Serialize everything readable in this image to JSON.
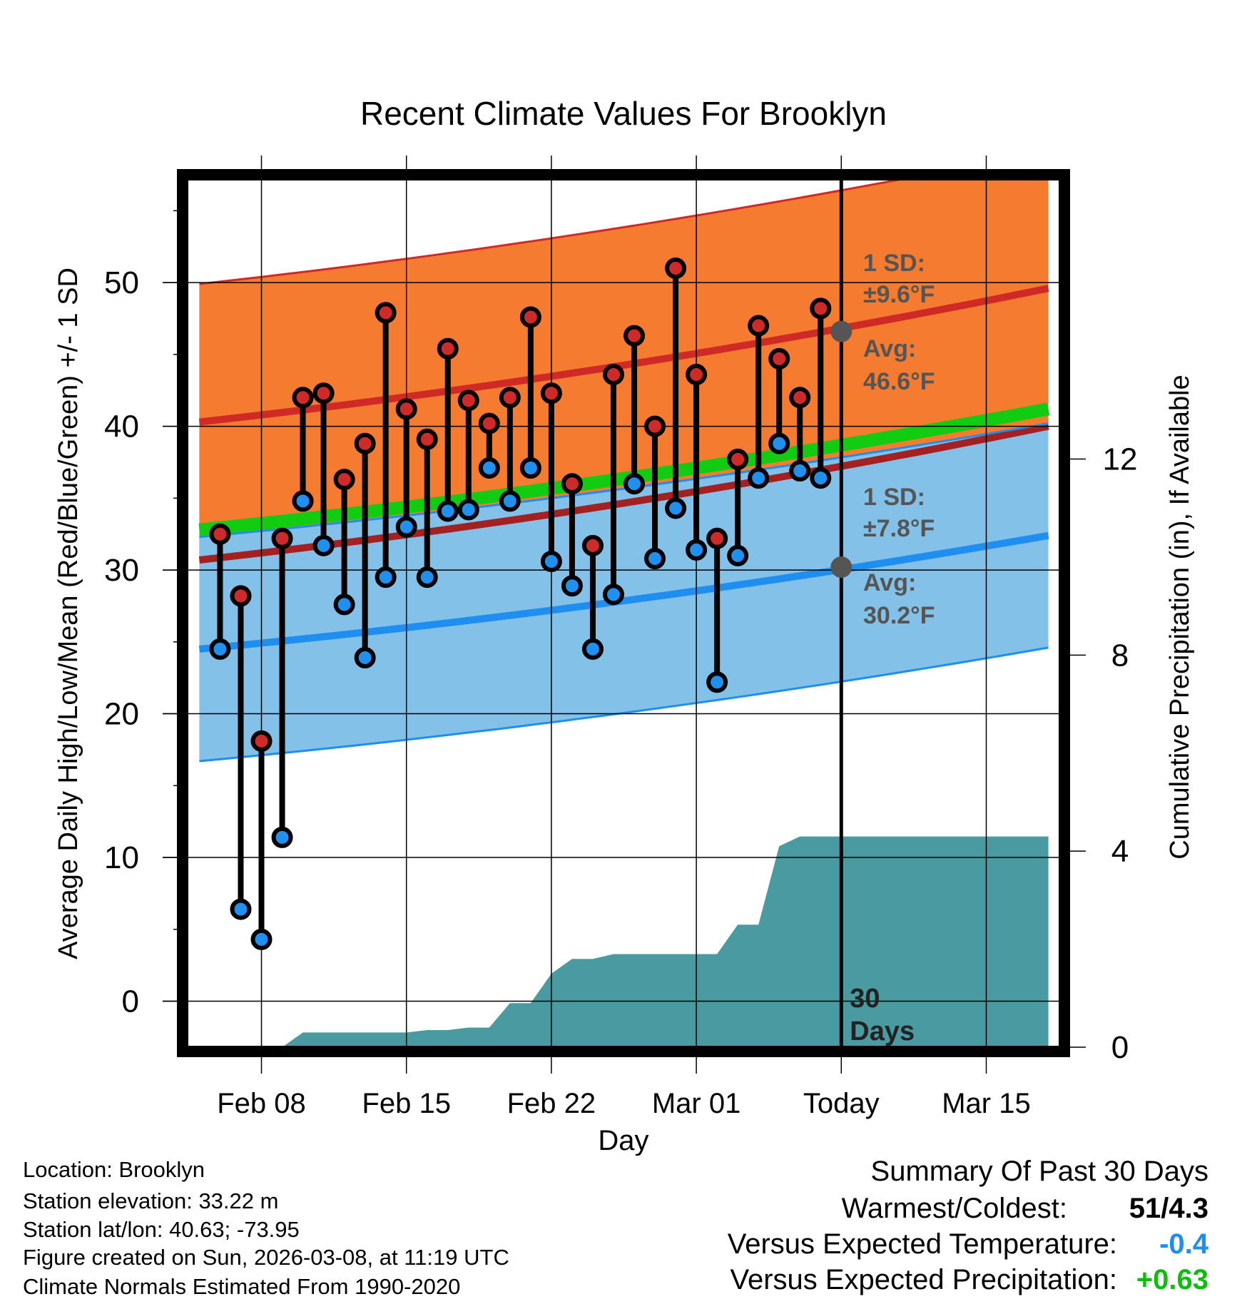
{
  "chart_data": {
    "type": "line",
    "title": "Recent Climate Values For Brooklyn",
    "xlabel": "Day",
    "ylabel": "Average Daily High/Low/Mean (Red/Blue/Green) +/- 1 SD",
    "ylabel_right": "Cumulative Precipitation (in), If Available",
    "xlim": [
      -3.6,
      38.6
    ],
    "ylim": [
      -3.2,
      57.5
    ],
    "ylim_right": [
      0,
      17.8
    ],
    "x_ticks": [
      {
        "x": 0,
        "label": "Feb 08"
      },
      {
        "x": 7,
        "label": "Feb 15"
      },
      {
        "x": 14,
        "label": "Feb 22"
      },
      {
        "x": 21,
        "label": "Mar 01"
      },
      {
        "x": 28,
        "label": "Today"
      },
      {
        "x": 35,
        "label": "Mar 15"
      }
    ],
    "y_ticks": [
      0,
      10,
      20,
      30,
      40,
      50
    ],
    "y_ticks_right": [
      0,
      4,
      8,
      12
    ],
    "today_x": 28,
    "today_label": [
      "30",
      "Days"
    ],
    "daily_x": [
      -2,
      -1,
      0,
      1,
      2,
      3,
      4,
      5,
      6,
      7,
      8,
      9,
      10,
      11,
      12,
      13,
      14,
      15,
      16,
      17,
      18,
      19,
      20,
      21,
      22,
      23,
      24,
      25,
      26,
      27
    ],
    "daily_high": [
      32.5,
      28.2,
      18.1,
      32.2,
      42.0,
      42.3,
      36.3,
      38.8,
      47.9,
      41.2,
      39.1,
      45.4,
      41.8,
      40.2,
      42.0,
      47.6,
      42.3,
      36.0,
      31.7,
      43.6,
      46.3,
      40.0,
      51.0,
      43.6,
      32.2,
      37.7,
      47.0,
      44.7,
      42.0,
      48.2
    ],
    "daily_low": [
      24.5,
      6.4,
      4.3,
      11.4,
      34.8,
      31.7,
      27.6,
      23.9,
      29.5,
      33.0,
      29.5,
      34.1,
      34.2,
      37.1,
      34.8,
      37.1,
      30.6,
      28.9,
      24.5,
      28.3,
      36.0,
      30.8,
      34.3,
      31.4,
      22.2,
      31.0,
      36.4,
      38.8,
      36.9,
      36.4
    ],
    "normal_x": [
      -3,
      38
    ],
    "normal_high": [
      40.3,
      49.6
    ],
    "normal_low": [
      24.5,
      32.4
    ],
    "normal_mean": [
      32.8,
      41.2
    ],
    "sd_high": 9.6,
    "sd_low": 7.8,
    "precip_x": [
      -3,
      -2,
      -1,
      0,
      1,
      2,
      3,
      4,
      5,
      6,
      7,
      8,
      9,
      10,
      11,
      12,
      13,
      14,
      15,
      16,
      17,
      18,
      19,
      20,
      21,
      22,
      23,
      24,
      25,
      26,
      27,
      28,
      29,
      30,
      31,
      32,
      33,
      34,
      35,
      36,
      37,
      38
    ],
    "precip_cum": [
      0,
      0,
      0,
      0,
      0,
      0.3,
      0.3,
      0.3,
      0.3,
      0.3,
      0.3,
      0.35,
      0.35,
      0.4,
      0.4,
      0.9,
      0.9,
      1.5,
      1.8,
      1.8,
      1.9,
      1.9,
      1.9,
      1.9,
      1.9,
      1.9,
      2.5,
      2.5,
      4.1,
      4.3,
      4.3,
      4.3,
      4.3,
      4.3,
      4.3,
      4.3,
      4.3,
      4.3,
      4.3,
      4.3,
      4.3,
      4.3
    ],
    "annotations": {
      "high_sd_label": "1 SD:",
      "high_sd_value": "±9.6°F",
      "high_avg_label": "Avg:",
      "high_avg_value": "46.6°F",
      "low_sd_label": "1 SD:",
      "low_sd_value": "±7.8°F",
      "low_avg_label": "Avg:",
      "low_avg_value": "30.2°F",
      "high_avg_number": 46.6,
      "low_avg_number": 30.2
    },
    "colors": {
      "high_band": "#f47b30",
      "low_band": "#83c1e8",
      "high_line": "#d02a26",
      "low_line": "#1e8ff0",
      "mean_line": "#11cc11",
      "precip": "#4a9aa1",
      "high_dot": "#cf2a2a",
      "low_dot": "#1f90ee",
      "avg_dot": "#555555",
      "annotation": "#555555"
    }
  },
  "footer": {
    "location": "Location: Brooklyn",
    "elevation": "Station elevation: 33.22 m",
    "latlon": "Station lat/lon: 40.63; -73.95",
    "created": "Figure created on Sun, 2026-03-08, at 11:19 UTC",
    "normals": "Climate Normals Estimated From 1990-2020"
  },
  "summary": {
    "title": "Summary Of Past 30 Days",
    "warm_cold_label": "Warmest/Coldest:",
    "warm_cold_value": "51/4.3",
    "temp_label": "Versus Expected Temperature:",
    "temp_value": "-0.4",
    "temp_color": "#1e8ff0",
    "precip_label": "Versus Expected Precipitation:",
    "precip_value": "+0.63",
    "precip_color": "#11bb11"
  }
}
